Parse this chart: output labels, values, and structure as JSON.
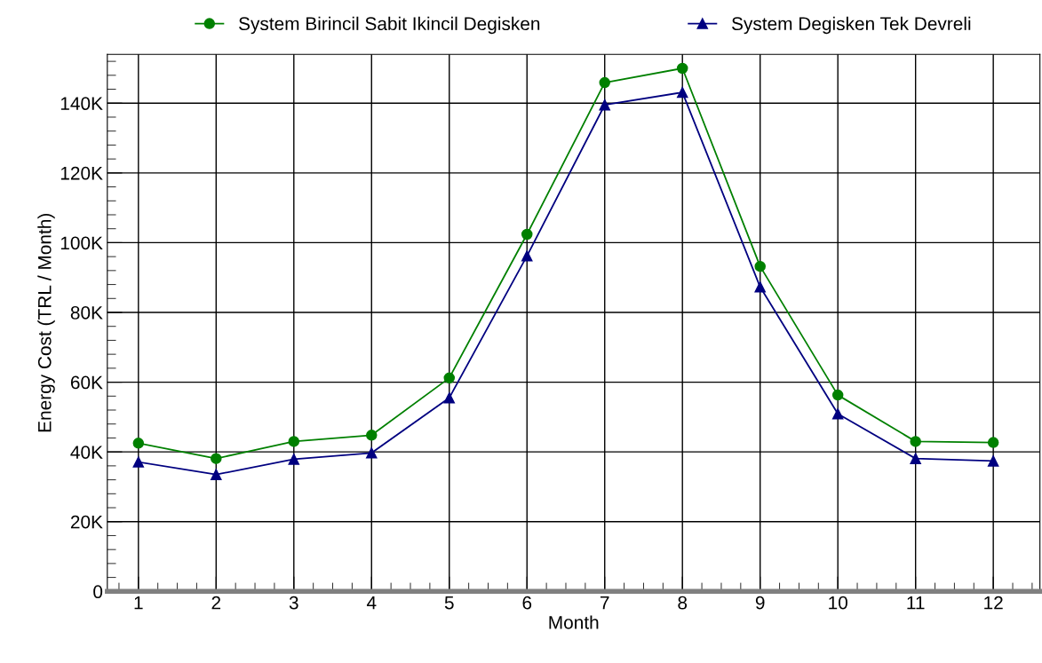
{
  "chart_data": {
    "type": "line",
    "xlabel": "Month",
    "ylabel": "Energy Cost (TRL / Month)",
    "categories": [
      "1",
      "2",
      "3",
      "4",
      "5",
      "6",
      "7",
      "8",
      "9",
      "10",
      "11",
      "12"
    ],
    "series": [
      {
        "name": "System Birincil Sabit Ikincil Degisken",
        "color": "#008000",
        "marker": "circle",
        "values": [
          42500,
          38100,
          43000,
          44800,
          61200,
          102400,
          145900,
          150000,
          93200,
          56300,
          43000,
          42700
        ]
      },
      {
        "name": "System Degisken Tek Devreli",
        "color": "#000080",
        "marker": "triangle",
        "values": [
          37100,
          33500,
          37900,
          39700,
          55500,
          96200,
          139500,
          143100,
          87300,
          50900,
          38100,
          37400
        ]
      }
    ],
    "ylim": [
      0,
      154000
    ],
    "yticks": [
      {
        "value": 0,
        "label": "0"
      },
      {
        "value": 20000,
        "label": "20K"
      },
      {
        "value": 40000,
        "label": "40K"
      },
      {
        "value": 60000,
        "label": "60K"
      },
      {
        "value": 80000,
        "label": "80K"
      },
      {
        "value": 100000,
        "label": "100K"
      },
      {
        "value": 120000,
        "label": "120K"
      },
      {
        "value": 140000,
        "label": "140K"
      }
    ],
    "grid": true,
    "legend": "top",
    "line_style": "solid"
  }
}
